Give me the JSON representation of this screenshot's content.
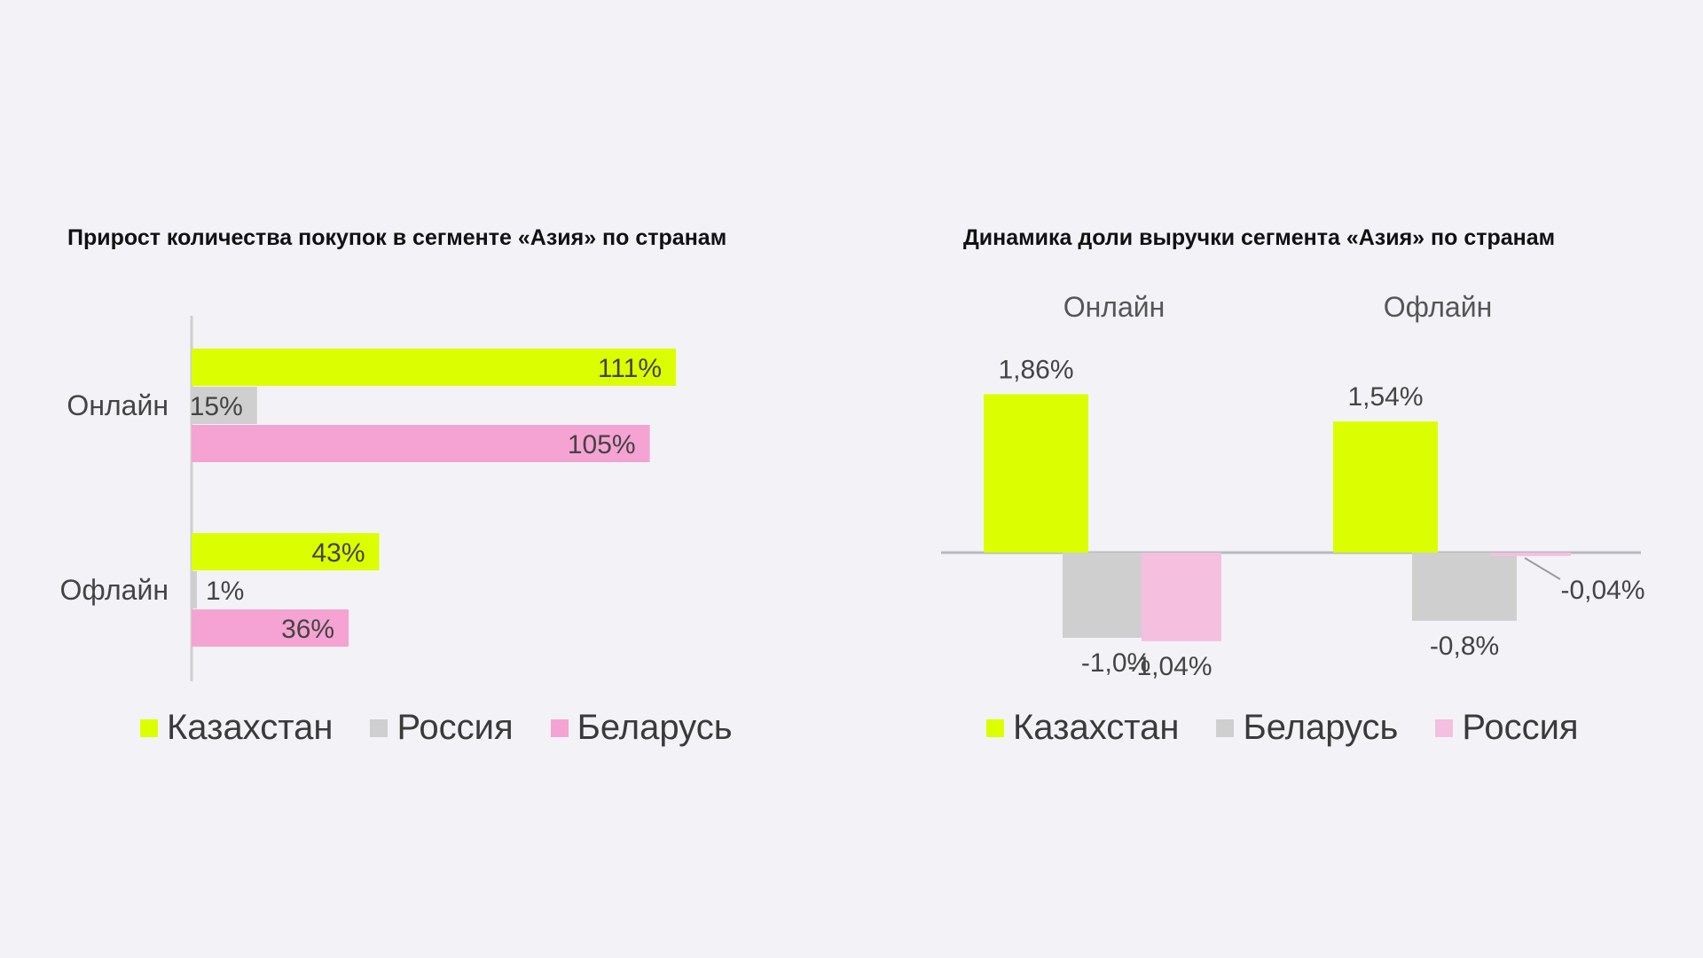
{
  "chart_data": [
    {
      "type": "bar",
      "orientation": "horizontal",
      "title": "Прирост количества покупок в сегменте «Азия» по странам",
      "categories": [
        "Онлайн",
        "Офлайн"
      ],
      "series": [
        {
          "name": "Казахстан",
          "color": "#dcff00",
          "values": [
            111,
            43
          ],
          "labels": [
            "111%",
            "43%"
          ]
        },
        {
          "name": "Россия",
          "color": "#cfcfcf",
          "values": [
            15,
            1
          ],
          "labels": [
            "15%",
            "1%"
          ]
        },
        {
          "name": "Беларусь",
          "color": "#f5a3d3",
          "values": [
            105,
            36
          ],
          "labels": [
            "105%",
            "36%"
          ]
        }
      ],
      "xlim": [
        0,
        130
      ],
      "grid": false,
      "legend_position": "bottom"
    },
    {
      "type": "bar",
      "orientation": "vertical",
      "title": "Динамика доли выручки сегмента «Азия» по странам",
      "categories": [
        "Онлайн",
        "Офлайн"
      ],
      "series": [
        {
          "name": "Казахстан",
          "color": "#dcff00",
          "values": [
            1.86,
            1.54
          ],
          "labels": [
            "1,86%",
            "1,54%"
          ]
        },
        {
          "name": "Беларусь",
          "color": "#cfcfcf",
          "values": [
            -1.0,
            -0.8
          ],
          "labels": [
            "-1,0%",
            "-0,8%"
          ]
        },
        {
          "name": "Россия",
          "color": "#f5bfe0",
          "values": [
            -1.04,
            -0.04
          ],
          "labels": [
            "-1,04%",
            "-0,04%"
          ]
        }
      ],
      "ylim": [
        -1.5,
        2.5
      ],
      "grid": false,
      "legend_position": "bottom"
    }
  ]
}
